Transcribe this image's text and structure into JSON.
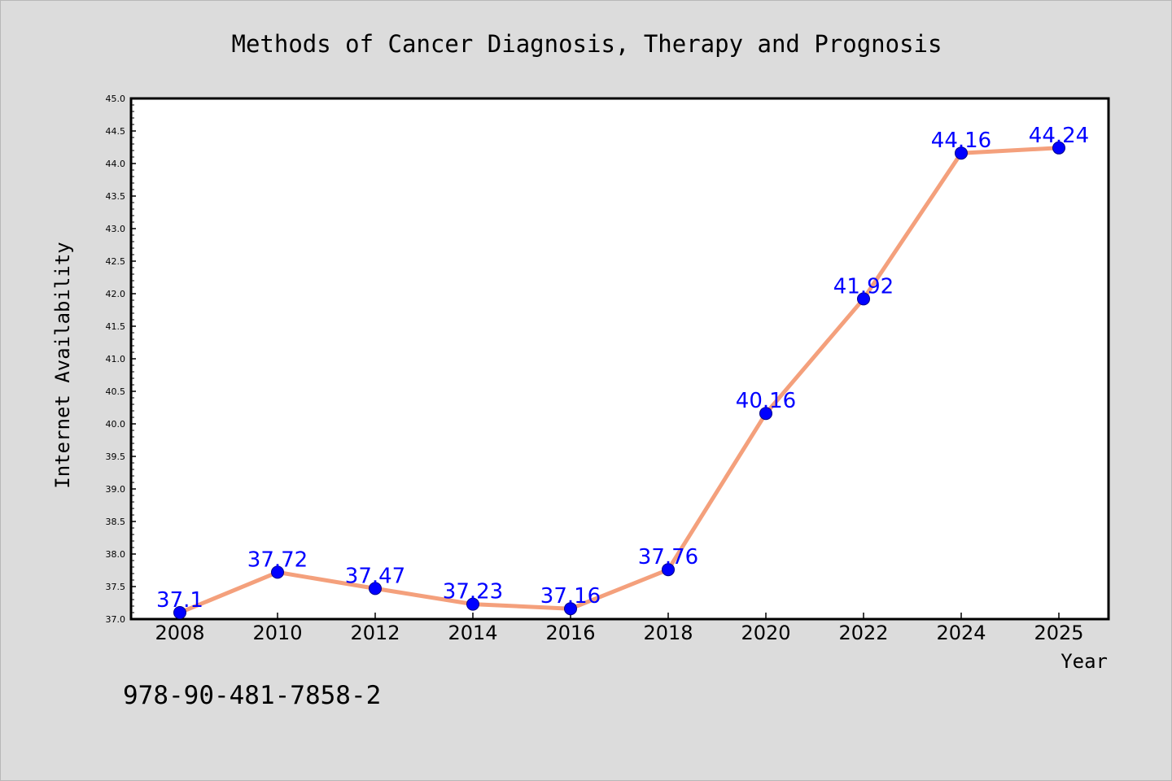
{
  "colors": {
    "background": "#dcdcdc",
    "plot_background": "#ffffff",
    "line": "#f4a07c",
    "marker": "#0000ff",
    "label": "#0000ff"
  },
  "footer": {
    "isbn": "978-90-481-7858-2"
  },
  "chart_data": {
    "type": "line",
    "title": "Methods of Cancer Diagnosis, Therapy and Prognosis",
    "xlabel": "Year",
    "ylabel": "Internet Availability",
    "categories": [
      "2008",
      "2010",
      "2012",
      "2014",
      "2016",
      "2018",
      "2020",
      "2022",
      "2024",
      "2025"
    ],
    "series": [
      {
        "values": [
          37.1,
          37.72,
          37.47,
          37.23,
          37.16,
          37.76,
          40.16,
          41.92,
          44.16,
          44.24
        ],
        "data_labels": [
          "37.1",
          "37.72",
          "37.47",
          "37.23",
          "37.16",
          "37.76",
          "40.16",
          "41.92",
          "44.16",
          "44.24"
        ]
      }
    ],
    "ylim": [
      37.0,
      45.0
    ],
    "yticks": [
      "37.0",
      "37.5",
      "38.0",
      "38.5",
      "39.0",
      "39.5",
      "40.0",
      "40.5",
      "41.0",
      "41.5",
      "42.0",
      "42.5",
      "43.0",
      "43.5",
      "44.0",
      "44.5",
      "45.0"
    ],
    "grid": false,
    "legend": "none"
  }
}
